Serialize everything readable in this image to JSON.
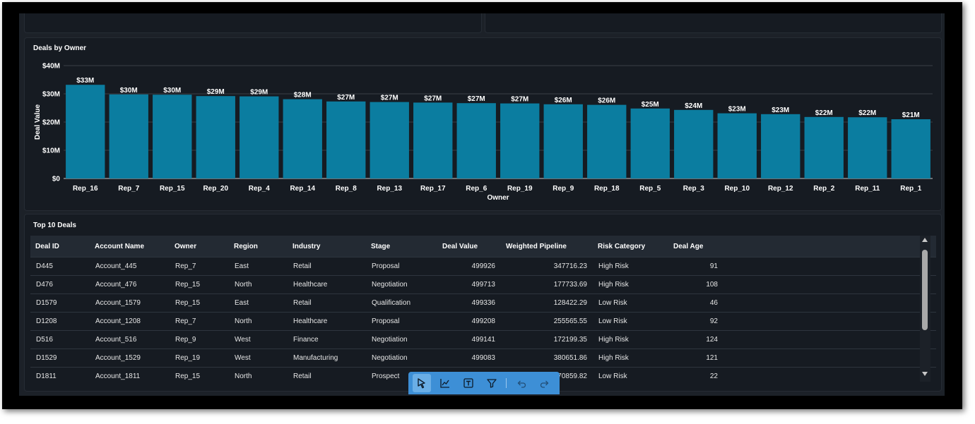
{
  "chart_title": "Deals by Owner",
  "chart_data": {
    "type": "bar",
    "title": "Deals by Owner",
    "xlabel": "Owner",
    "ylabel": "Deal Value",
    "ylim": [
      0,
      40
    ],
    "y_unit": "$M",
    "y_ticks": [
      "$0",
      "$10M",
      "$20M",
      "$30M",
      "$40M"
    ],
    "categories": [
      "Rep_16",
      "Rep_7",
      "Rep_15",
      "Rep_20",
      "Rep_4",
      "Rep_14",
      "Rep_8",
      "Rep_13",
      "Rep_17",
      "Rep_6",
      "Rep_19",
      "Rep_9",
      "Rep_18",
      "Rep_5",
      "Rep_3",
      "Rep_10",
      "Rep_12",
      "Rep_2",
      "Rep_11",
      "Rep_1"
    ],
    "values": [
      33.2,
      29.8,
      29.7,
      29.2,
      29.1,
      28.1,
      27.3,
      27.1,
      26.9,
      26.7,
      26.6,
      26.3,
      26.1,
      24.8,
      24.3,
      23.1,
      22.8,
      21.8,
      21.7,
      21.0
    ],
    "data_labels": [
      "$33M",
      "$30M",
      "$30M",
      "$29M",
      "$29M",
      "$28M",
      "$27M",
      "$27M",
      "$27M",
      "$27M",
      "$27M",
      "$26M",
      "$26M",
      "$25M",
      "$24M",
      "$23M",
      "$23M",
      "$22M",
      "$22M",
      "$21M"
    ],
    "bar_color": "#0b7da0",
    "grid": true,
    "legend": "none"
  },
  "table": {
    "title": "Top 10 Deals",
    "columns": [
      "Deal ID",
      "Account Name",
      "Owner",
      "Region",
      "Industry",
      "Stage",
      "Deal Value",
      "Weighted Pipeline",
      "Risk Category",
      "Deal Age"
    ],
    "rows": [
      [
        "D445",
        "Account_445",
        "Rep_7",
        "East",
        "Retail",
        "Proposal",
        "499926",
        "347716.23",
        "High Risk",
        "91"
      ],
      [
        "D476",
        "Account_476",
        "Rep_15",
        "North",
        "Healthcare",
        "Negotiation",
        "499713",
        "177733.69",
        "High Risk",
        "108"
      ],
      [
        "D1579",
        "Account_1579",
        "Rep_15",
        "East",
        "Retail",
        "Qualification",
        "499336",
        "128422.29",
        "Low Risk",
        "46"
      ],
      [
        "D1208",
        "Account_1208",
        "Rep_7",
        "North",
        "Healthcare",
        "Proposal",
        "499208",
        "255565.55",
        "Low Risk",
        "92"
      ],
      [
        "D516",
        "Account_516",
        "Rep_9",
        "West",
        "Finance",
        "Negotiation",
        "499141",
        "172199.35",
        "High Risk",
        "124"
      ],
      [
        "D1529",
        "Account_1529",
        "Rep_19",
        "West",
        "Manufacturing",
        "Negotiation",
        "499083",
        "380651.86",
        "High Risk",
        "121"
      ],
      [
        "D1811",
        "Account_1811",
        "Rep_15",
        "North",
        "Retail",
        "Prospect",
        "",
        "70859.82",
        "Low Risk",
        "22"
      ]
    ]
  },
  "toolbar": {
    "buttons": [
      {
        "icon": "cursor-icon",
        "state": "active"
      },
      {
        "icon": "line-chart-icon",
        "state": "normal"
      },
      {
        "icon": "text-box-icon",
        "state": "normal"
      },
      {
        "icon": "filter-icon",
        "state": "normal"
      },
      {
        "icon": "undo-icon",
        "state": "disabled"
      },
      {
        "icon": "redo-icon",
        "state": "disabled"
      }
    ],
    "color": "#3d8fd6"
  }
}
